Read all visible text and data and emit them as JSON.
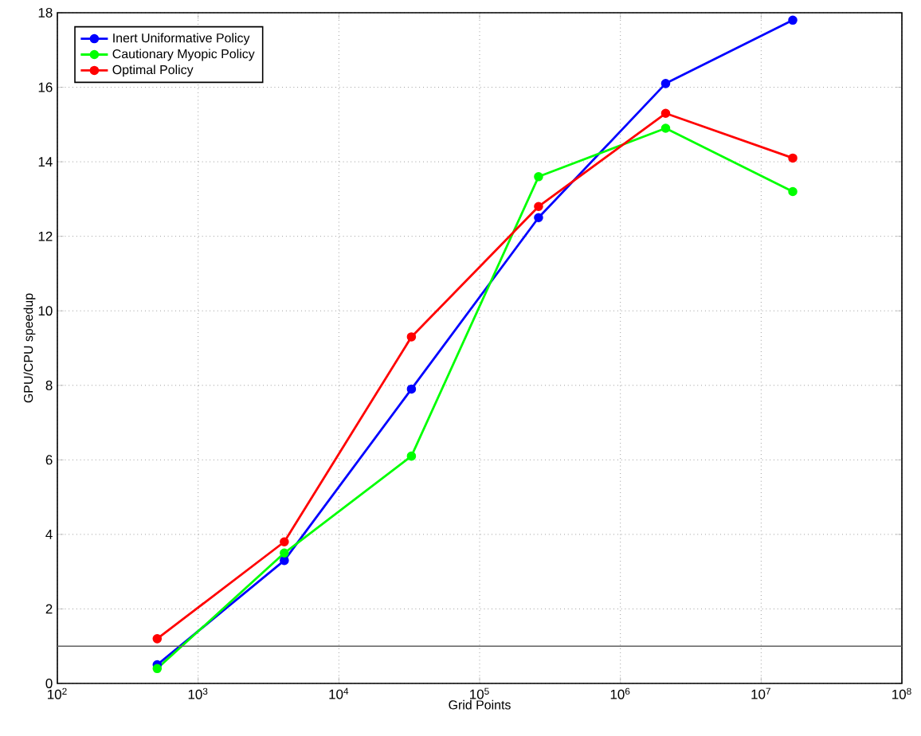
{
  "chart_data": {
    "type": "line",
    "xlabel": "Grid Points",
    "ylabel": "GPU/CPU speedup",
    "x": [
      512,
      4096,
      32768,
      262144,
      2097152,
      16777216
    ],
    "series": [
      {
        "name": "Inert Uniformative Policy",
        "color": "#0000ff",
        "values": [
          0.5,
          3.3,
          7.9,
          12.5,
          16.1,
          17.8
        ]
      },
      {
        "name": "Cautionary Myopic Policy",
        "color": "#00ff00",
        "values": [
          0.4,
          3.5,
          6.1,
          13.6,
          14.9,
          13.2
        ]
      },
      {
        "name": "Optimal Policy",
        "color": "#ff0000",
        "values": [
          1.2,
          3.8,
          9.3,
          12.8,
          15.3,
          14.1
        ]
      }
    ],
    "log": "x",
    "xlim": [
      100,
      100000000
    ],
    "xticks": [
      {
        "value": 100,
        "label": "10$^{2}$"
      },
      {
        "value": 1000,
        "label": "10$^{3}$"
      },
      {
        "value": 10000,
        "label": "10$^{4}$"
      },
      {
        "value": 100000,
        "label": "10$^{5}$"
      },
      {
        "value": 1000000,
        "label": "10$^{6}$"
      },
      {
        "value": 10000000,
        "label": "10$^{7}$"
      },
      {
        "value": 100000000,
        "label": "10$^{8}$"
      }
    ],
    "ylim": [
      0,
      18
    ],
    "yticks": [
      0,
      2,
      4,
      6,
      8,
      10,
      12,
      14,
      16,
      18
    ],
    "ref_lines": [
      {
        "axis": "y",
        "value": 1,
        "color": "#606060"
      }
    ],
    "grid": true,
    "legend": "top left",
    "marker": "circle",
    "line_style": "solid"
  }
}
